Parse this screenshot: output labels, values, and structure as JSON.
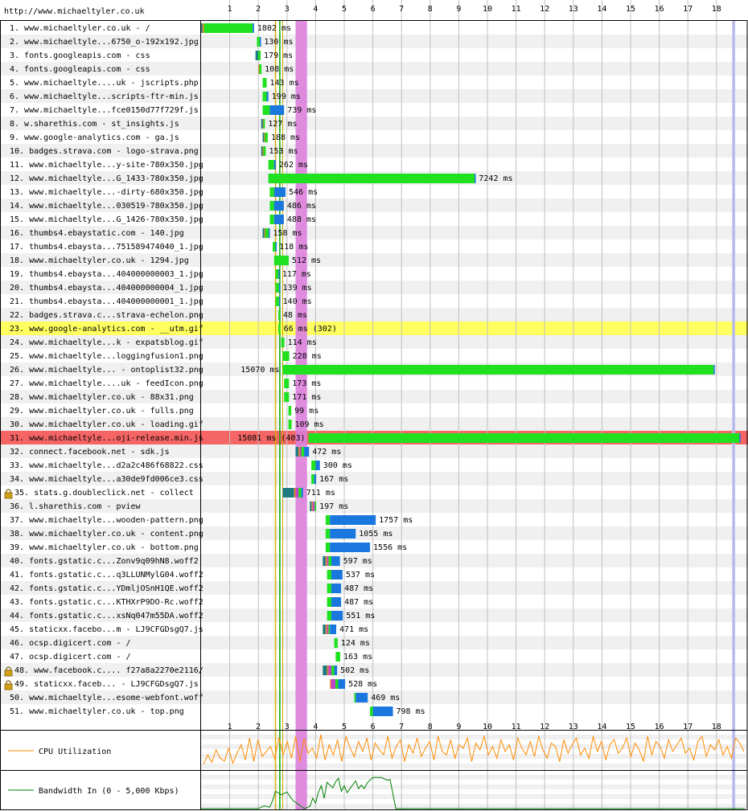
{
  "page": {
    "url": "http://www.michaeltyler.co.uk"
  },
  "chart_data": {
    "type": "waterfall",
    "title": "http://www.michaeltyler.co.uk",
    "x_axis": {
      "unit": "seconds",
      "min": 0,
      "max": 19,
      "ticks": [
        1,
        2,
        3,
        4,
        5,
        6,
        7,
        8,
        9,
        10,
        11,
        12,
        13,
        14,
        15,
        16,
        17,
        18
      ]
    },
    "colors": {
      "dns": "#1f7c83",
      "connect": "#e58226",
      "ssl": "#c141cd",
      "ttfb": "#1fe11f",
      "download": "#1977dd",
      "error_row": "#f56565",
      "highlight_row": "#ffff60",
      "alt_row": "#f0f0f0",
      "grid": "#c0c0c0",
      "border": "#000000",
      "cpu_line": "#ff8c00",
      "bw_line": "#008000",
      "ssl_window": "#db7fdb",
      "start_render": "#00aa00",
      "dom_content": "#c8a800",
      "onload": "#b9b9ee"
    },
    "markers": {
      "start_render": 2.75,
      "first_paint": 2.6,
      "dom_loaded": 2.85,
      "load_event_start": 3.3,
      "load_event_end": 3.7,
      "document_complete": 18.55,
      "document_complete_end": 18.65
    },
    "requests": [
      {
        "label": "1. www.michaeltyler.co.uk - /",
        "timing": "1802 ms",
        "start": 0,
        "dns": 0.05,
        "connect": 0.05,
        "ssl": 0,
        "ttfb": 1.7,
        "download": 0.05,
        "lock": false,
        "status": "ok"
      },
      {
        "label": "2. www.michaeltyle...6750_o-192x192.jpg",
        "timing": "130 ms",
        "start": 1.95,
        "dns": 0,
        "connect": 0,
        "ssl": 0,
        "ttfb": 0.1,
        "download": 0.04,
        "lock": false,
        "status": "ok"
      },
      {
        "label": "3. fonts.googleapis.com - css",
        "timing": "179 ms",
        "start": 1.9,
        "dns": 0.1,
        "connect": 0,
        "ssl": 0,
        "ttfb": 0.08,
        "download": 0.0,
        "lock": false,
        "status": "ok"
      },
      {
        "label": "4. fonts.googleapis.com - css",
        "timing": "108 ms",
        "start": 2.0,
        "dns": 0,
        "connect": 0.03,
        "ssl": 0,
        "ttfb": 0.08,
        "download": 0,
        "lock": false,
        "status": "ok"
      },
      {
        "label": "5. www.michaeltyle....uk - jscripts.php",
        "timing": "143 ms",
        "start": 2.15,
        "dns": 0,
        "connect": 0,
        "ssl": 0,
        "ttfb": 0.14,
        "download": 0,
        "lock": false,
        "status": "ok"
      },
      {
        "label": "6. www.michaeltyle...scripts-ftr-min.js",
        "timing": "199 ms",
        "start": 2.15,
        "dns": 0,
        "connect": 0,
        "ssl": 0,
        "ttfb": 0.14,
        "download": 0.06,
        "lock": false,
        "status": "ok"
      },
      {
        "label": "7. www.michaeltyle...fce0150d77f729f.js",
        "timing": "739 ms",
        "start": 2.15,
        "dns": 0,
        "connect": 0,
        "ssl": 0,
        "ttfb": 0.25,
        "download": 0.5,
        "lock": false,
        "status": "ok"
      },
      {
        "label": "8. w.sharethis.com - st_insights.js",
        "timing": "127 ms",
        "start": 2.1,
        "dns": 0.06,
        "connect": 0.02,
        "ssl": 0,
        "ttfb": 0.05,
        "download": 0,
        "lock": false,
        "status": "ok"
      },
      {
        "label": "9. www.google-analytics.com - ga.js",
        "timing": "188 ms",
        "start": 2.15,
        "dns": 0.05,
        "connect": 0.03,
        "ssl": 0,
        "ttfb": 0.1,
        "download": 0,
        "lock": false,
        "status": "ok"
      },
      {
        "label": "10. badges.strava.com - logo-strava.png",
        "timing": "153 ms",
        "start": 2.1,
        "dns": 0.05,
        "connect": 0.03,
        "ssl": 0,
        "ttfb": 0.08,
        "download": 0,
        "lock": false,
        "status": "ok"
      },
      {
        "label": "11. www.michaeltyle...y-site-780x350.jpg",
        "timing": "262 ms",
        "start": 2.35,
        "dns": 0,
        "connect": 0,
        "ssl": 0,
        "ttfb": 0.2,
        "download": 0.06,
        "lock": false,
        "status": "ok"
      },
      {
        "label": "12. www.michaeltyle...G_1433-780x350.jpg",
        "timing": "7242 ms",
        "start": 2.35,
        "dns": 0,
        "connect": 0,
        "ssl": 0,
        "ttfb": 7.2,
        "download": 0.04,
        "lock": false,
        "status": "ok"
      },
      {
        "label": "13. www.michaeltyle...-dirty-680x350.jpg",
        "timing": "546 ms",
        "start": 2.4,
        "dns": 0,
        "connect": 0,
        "ssl": 0,
        "ttfb": 0.15,
        "download": 0.4,
        "lock": false,
        "status": "ok"
      },
      {
        "label": "14. www.michaeltyle...030519-780x350.jpg",
        "timing": "486 ms",
        "start": 2.4,
        "dns": 0,
        "connect": 0,
        "ssl": 0,
        "ttfb": 0.15,
        "download": 0.34,
        "lock": false,
        "status": "ok"
      },
      {
        "label": "15. www.michaeltyle...G_1426-780x350.jpg",
        "timing": "488 ms",
        "start": 2.4,
        "dns": 0,
        "connect": 0,
        "ssl": 0,
        "ttfb": 0.15,
        "download": 0.34,
        "lock": false,
        "status": "ok"
      },
      {
        "label": "16. thumbs4.ebaystatic.com - 140.jpg",
        "timing": "158 ms",
        "start": 2.15,
        "dns": 0.06,
        "connect": 0.03,
        "ssl": 0,
        "ttfb": 0.12,
        "download": 0.04,
        "lock": false,
        "status": "ok"
      },
      {
        "label": "17. thumbs4.ebaysta...751589474040_1.jpg",
        "timing": "118 ms",
        "start": 2.5,
        "dns": 0,
        "connect": 0,
        "ssl": 0,
        "ttfb": 0.1,
        "download": 0.02,
        "lock": false,
        "status": "ok"
      },
      {
        "label": "18. www.michaeltyler.co.uk - 1294.jpg",
        "timing": "512 ms",
        "start": 2.55,
        "dns": 0,
        "connect": 0,
        "ssl": 0,
        "ttfb": 0.51,
        "download": 0,
        "lock": false,
        "status": "ok"
      },
      {
        "label": "19. thumbs4.ebaysta...404000000003_1.jpg",
        "timing": "117 ms",
        "start": 2.6,
        "dns": 0,
        "connect": 0,
        "ssl": 0,
        "ttfb": 0.1,
        "download": 0.02,
        "lock": false,
        "status": "ok"
      },
      {
        "label": "20. thumbs4.ebaysta...404000000004_1.jpg",
        "timing": "139 ms",
        "start": 2.6,
        "dns": 0,
        "connect": 0,
        "ssl": 0,
        "ttfb": 0.12,
        "download": 0.02,
        "lock": false,
        "status": "ok"
      },
      {
        "label": "21. thumbs4.ebaysta...404000000001_1.jpg",
        "timing": "140 ms",
        "start": 2.6,
        "dns": 0,
        "connect": 0,
        "ssl": 0,
        "ttfb": 0.12,
        "download": 0.02,
        "lock": false,
        "status": "ok"
      },
      {
        "label": "22. badges.strava.c...strava-echelon.png",
        "timing": "48 ms",
        "start": 2.7,
        "dns": 0,
        "connect": 0,
        "ssl": 0,
        "ttfb": 0.05,
        "download": 0,
        "lock": false,
        "status": "ok"
      },
      {
        "label": "23. www.google-analytics.com - __utm.gif",
        "timing": "66 ms (302)",
        "start": 2.7,
        "dns": 0,
        "connect": 0,
        "ssl": 0,
        "ttfb": 0.07,
        "download": 0,
        "lock": false,
        "status": "redirect"
      },
      {
        "label": "24. www.michaeltyle...k - expatsblog.gif",
        "timing": "114 ms",
        "start": 2.8,
        "dns": 0,
        "connect": 0,
        "ssl": 0,
        "ttfb": 0.11,
        "download": 0,
        "lock": false,
        "status": "ok"
      },
      {
        "label": "25. www.michaeltyle...loggingfusion1.png",
        "timing": "228 ms",
        "start": 2.85,
        "dns": 0,
        "connect": 0,
        "ssl": 0,
        "ttfb": 0.23,
        "download": 0,
        "lock": false,
        "status": "ok"
      },
      {
        "label": "26. www.michaeltyle... - ontoplist32.png",
        "timing": "15070 ms",
        "start": 2.85,
        "dns": 0,
        "connect": 0,
        "ssl": 0,
        "ttfb": 15.05,
        "download": 0.02,
        "lock": false,
        "status": "ok"
      },
      {
        "label": "27. www.michaeltyle....uk - feedIcon.png",
        "timing": "173 ms",
        "start": 2.9,
        "dns": 0,
        "connect": 0,
        "ssl": 0,
        "ttfb": 0.17,
        "download": 0,
        "lock": false,
        "status": "ok"
      },
      {
        "label": "28. www.michaeltyler.co.uk - 88x31.png",
        "timing": "171 ms",
        "start": 2.9,
        "dns": 0,
        "connect": 0,
        "ssl": 0,
        "ttfb": 0.17,
        "download": 0,
        "lock": false,
        "status": "ok"
      },
      {
        "label": "29. www.michaeltyler.co.uk - fulls.png",
        "timing": "99 ms",
        "start": 3.05,
        "dns": 0,
        "connect": 0,
        "ssl": 0,
        "ttfb": 0.1,
        "download": 0,
        "lock": false,
        "status": "ok"
      },
      {
        "label": "30. www.michaeltyler.co.uk - loading.gif",
        "timing": "109 ms",
        "start": 3.05,
        "dns": 0,
        "connect": 0,
        "ssl": 0,
        "ttfb": 0.11,
        "download": 0,
        "lock": false,
        "status": "ok"
      },
      {
        "label": "31. www.michaeltyle...oji-release.min.js",
        "timing": "15081 ms (403)",
        "start": 3.75,
        "dns": 0,
        "connect": 0,
        "ssl": 0,
        "ttfb": 15.05,
        "download": 0.03,
        "lock": false,
        "status": "error"
      },
      {
        "label": "32. connect.facebook.net - sdk.js",
        "timing": "472 ms",
        "start": 3.3,
        "dns": 0.1,
        "connect": 0.05,
        "ssl": 0.05,
        "ttfb": 0.1,
        "download": 0.17,
        "lock": false,
        "status": "ok"
      },
      {
        "label": "33. www.michaeltyle...d2a2c486f68822.css",
        "timing": "300 ms",
        "start": 3.85,
        "dns": 0,
        "connect": 0,
        "ssl": 0,
        "ttfb": 0.15,
        "download": 0.15,
        "lock": false,
        "status": "ok"
      },
      {
        "label": "34. www.michaeltyle...a30de9fd006ce3.css",
        "timing": "167 ms",
        "start": 3.85,
        "dns": 0,
        "connect": 0,
        "ssl": 0,
        "ttfb": 0.1,
        "download": 0.07,
        "lock": false,
        "status": "ok"
      },
      {
        "label": "35. stats.g.doubleclick.net - collect",
        "timing": "711 ms",
        "start": 2.85,
        "dns": 0.4,
        "connect": 0.05,
        "ssl": 0.1,
        "ttfb": 0.1,
        "download": 0.06,
        "lock": true,
        "status": "ok"
      },
      {
        "label": "36. l.sharethis.com - pview",
        "timing": "197 ms",
        "start": 3.8,
        "dns": 0.06,
        "connect": 0.04,
        "ssl": 0.07,
        "ttfb": 0.05,
        "download": 0,
        "lock": false,
        "status": "ok"
      },
      {
        "label": "37. www.michaeltyle...wooden-pattern.png",
        "timing": "1757 ms",
        "start": 4.35,
        "dns": 0,
        "connect": 0,
        "ssl": 0,
        "ttfb": 0.15,
        "download": 1.6,
        "lock": false,
        "status": "ok"
      },
      {
        "label": "38. www.michaeltyler.co.uk - content.png",
        "timing": "1055 ms",
        "start": 4.35,
        "dns": 0,
        "connect": 0,
        "ssl": 0,
        "ttfb": 0.15,
        "download": 0.9,
        "lock": false,
        "status": "ok"
      },
      {
        "label": "39. www.michaeltyler.co.uk - bottom.png",
        "timing": "1556 ms",
        "start": 4.35,
        "dns": 0,
        "connect": 0,
        "ssl": 0,
        "ttfb": 0.15,
        "download": 1.4,
        "lock": false,
        "status": "ok"
      },
      {
        "label": "40. fonts.gstatic.c...Zonv9q09hN8.woff2",
        "timing": "597 ms",
        "start": 4.25,
        "dns": 0.1,
        "connect": 0.05,
        "ssl": 0.05,
        "ttfb": 0.1,
        "download": 0.3,
        "lock": false,
        "status": "ok"
      },
      {
        "label": "41. fonts.gstatic.c...q3LLUNMylG04.woff2",
        "timing": "537 ms",
        "start": 4.4,
        "dns": 0,
        "connect": 0,
        "ssl": 0,
        "ttfb": 0.15,
        "download": 0.39,
        "lock": false,
        "status": "ok"
      },
      {
        "label": "42. fonts.gstatic.c...YDmljOSnH1QE.woff2",
        "timing": "487 ms",
        "start": 4.4,
        "dns": 0,
        "connect": 0,
        "ssl": 0,
        "ttfb": 0.15,
        "download": 0.34,
        "lock": false,
        "status": "ok"
      },
      {
        "label": "43. fonts.gstatic.c...KTHXrP9DO-Rc.woff2",
        "timing": "487 ms",
        "start": 4.4,
        "dns": 0,
        "connect": 0,
        "ssl": 0,
        "ttfb": 0.15,
        "download": 0.34,
        "lock": false,
        "status": "ok"
      },
      {
        "label": "44. fonts.gstatic.c...xsNq047m55DA.woff2",
        "timing": "551 ms",
        "start": 4.4,
        "dns": 0,
        "connect": 0,
        "ssl": 0,
        "ttfb": 0.15,
        "download": 0.4,
        "lock": false,
        "status": "ok"
      },
      {
        "label": "45. staticxx.facebo...m - LJ9CFGDsgQ7.js",
        "timing": "471 ms",
        "start": 4.25,
        "dns": 0.1,
        "connect": 0.05,
        "ssl": 0.05,
        "ttfb": 0.05,
        "download": 0.22,
        "lock": false,
        "status": "ok"
      },
      {
        "label": "46. ocsp.digicert.com - /",
        "timing": "124 ms",
        "start": 4.65,
        "dns": 0,
        "connect": 0,
        "ssl": 0,
        "ttfb": 0.12,
        "download": 0,
        "lock": false,
        "status": "ok"
      },
      {
        "label": "47. ocsp.digicert.com - /",
        "timing": "163 ms",
        "start": 4.7,
        "dns": 0,
        "connect": 0,
        "ssl": 0,
        "ttfb": 0.16,
        "download": 0,
        "lock": false,
        "status": "ok"
      },
      {
        "label": "48. www.facebook.c.... f27a8a2270e2116/",
        "timing": "502 ms",
        "start": 4.25,
        "dns": 0.15,
        "connect": 0.05,
        "ssl": 0.1,
        "ttfb": 0.1,
        "download": 0.1,
        "lock": true,
        "status": "ok"
      },
      {
        "label": "49. staticxx.faceb... - LJ9CFGDsgQ7.js",
        "timing": "528 ms",
        "start": 4.5,
        "dns": 0,
        "connect": 0.04,
        "ssl": 0.15,
        "ttfb": 0.1,
        "download": 0.24,
        "lock": true,
        "status": "ok"
      },
      {
        "label": "50. www.michaeltyle...esome-webfont.woff",
        "timing": "469 ms",
        "start": 5.35,
        "dns": 0,
        "connect": 0,
        "ssl": 0,
        "ttfb": 0.05,
        "download": 0.42,
        "lock": false,
        "status": "ok"
      },
      {
        "label": "51. www.michaeltyler.co.uk - top.png",
        "timing": "798 ms",
        "start": 5.9,
        "dns": 0,
        "connect": 0,
        "ssl": 0,
        "ttfb": 0.1,
        "download": 0.7,
        "lock": false,
        "status": "ok"
      }
    ],
    "cpu": {
      "label": "CPU Utilization",
      "unit": "percent",
      "values": [
        12,
        40,
        18,
        55,
        30,
        22,
        60,
        15,
        45,
        70,
        25,
        90,
        20,
        85,
        35,
        50,
        65,
        28,
        92,
        40,
        80,
        30,
        95,
        20,
        88,
        45,
        60,
        30,
        100,
        25,
        70,
        40,
        85,
        20,
        95,
        60,
        35,
        80,
        50,
        90,
        25,
        75,
        55,
        40,
        95,
        30,
        65,
        85,
        20,
        70,
        45,
        90,
        35,
        60,
        80,
        25,
        95,
        50,
        40,
        85,
        30,
        70,
        60,
        90,
        20,
        75,
        55,
        95,
        40,
        65,
        30,
        85,
        50,
        70,
        25,
        90,
        60,
        40,
        80,
        35,
        95,
        55,
        30,
        75,
        65,
        20,
        85,
        45,
        70,
        90,
        40,
        60,
        30,
        95,
        50,
        80,
        25,
        70,
        85,
        45,
        60,
        90,
        35,
        75,
        55,
        20,
        95,
        40,
        80,
        65,
        30,
        85,
        50,
        70,
        90,
        45,
        60,
        25,
        80,
        95,
        35,
        70,
        55,
        85,
        40,
        65,
        30,
        90,
        75,
        50
      ]
    },
    "bandwidth": {
      "label": "Bandwidth In (0 - 5,000 Kbps)",
      "unit": "Kbps",
      "max": 5000,
      "x": [
        0,
        2.0,
        2.2,
        2.4,
        2.5,
        2.6,
        2.8,
        3.0,
        3.2,
        3.4,
        3.6,
        3.8,
        3.9,
        4.0,
        4.1,
        4.2,
        4.3,
        4.4,
        4.6,
        4.7,
        4.8,
        4.9,
        5.0,
        5.1,
        5.2,
        5.4,
        5.5,
        5.6,
        5.7,
        5.8,
        6.0,
        6.3,
        6.5,
        6.6,
        6.8,
        19.0
      ],
      "y": [
        0,
        0,
        400,
        200,
        1200,
        2500,
        2000,
        2400,
        1200,
        600,
        0,
        300,
        1500,
        800,
        2400,
        3300,
        1500,
        3800,
        3000,
        3900,
        4400,
        2500,
        3300,
        2300,
        2900,
        4000,
        2900,
        3400,
        2900,
        3700,
        4500,
        4500,
        4100,
        4200,
        0,
        0
      ]
    }
  }
}
